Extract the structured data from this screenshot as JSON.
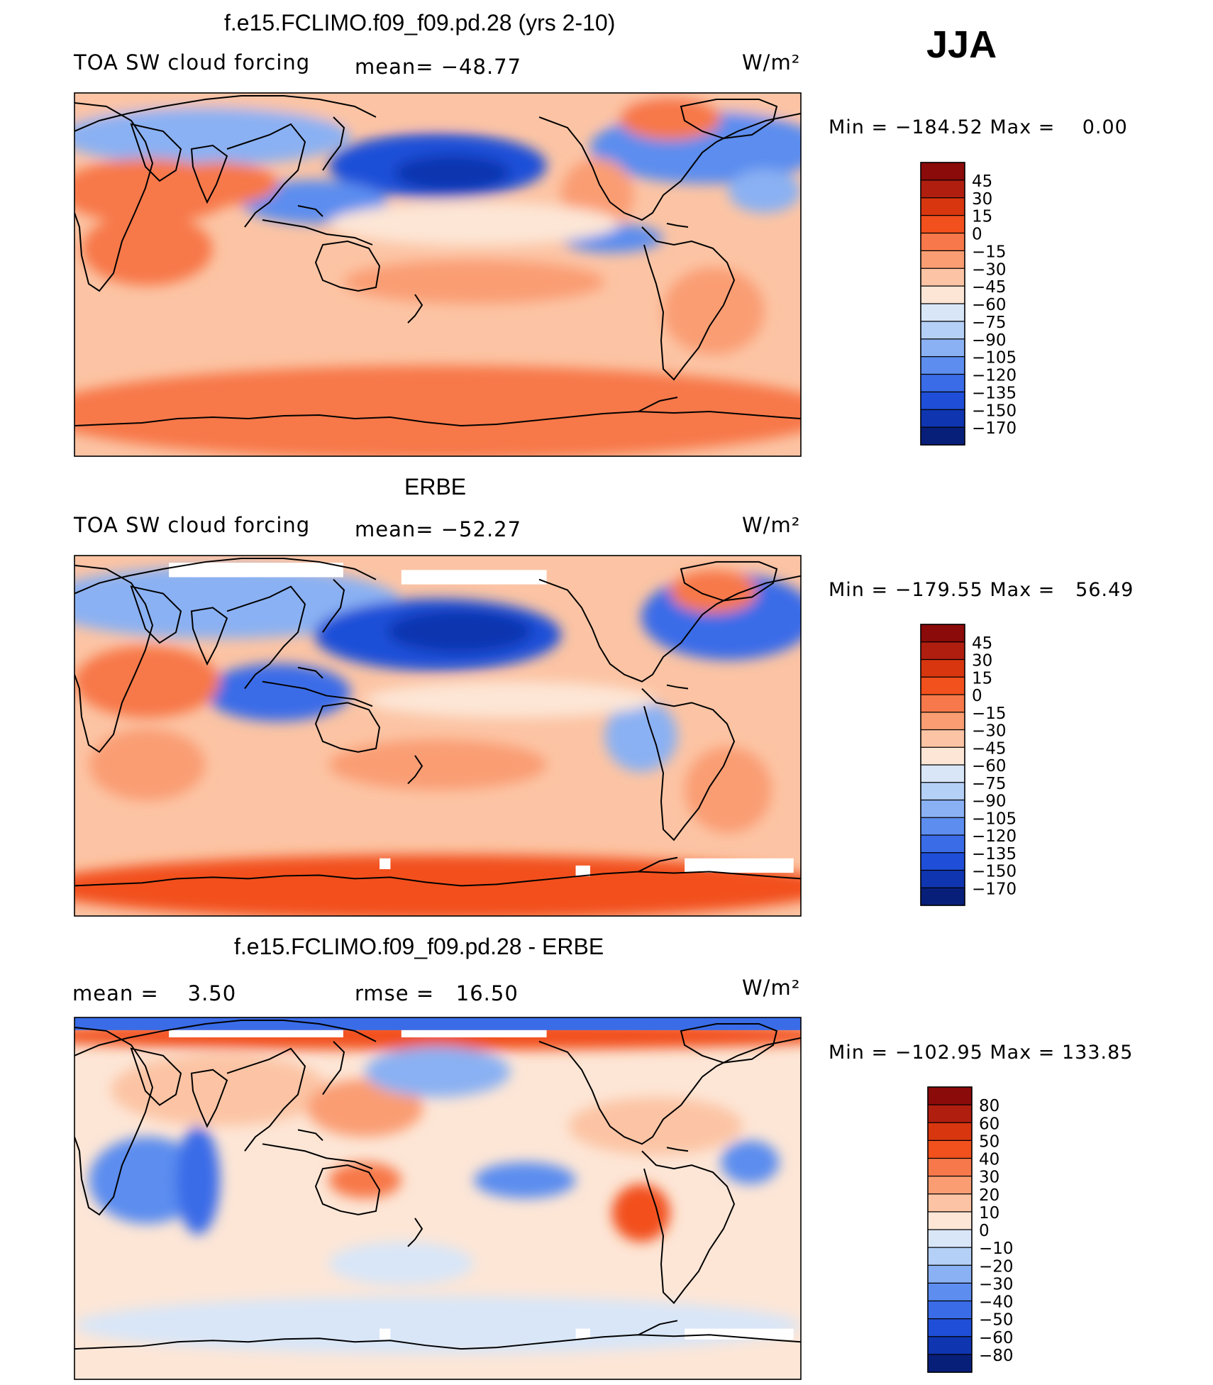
{
  "season": "JJA",
  "colors": {
    "abs_palette": [
      "#8b0a0a",
      "#b01e10",
      "#d8360f",
      "#f2501c",
      "#f7784a",
      "#fa9d73",
      "#fcc4a4",
      "#fde6d6",
      "#d8e6f8",
      "#b5d0f7",
      "#8ab1f3",
      "#5c8def",
      "#3a6ce8",
      "#1f4fd8",
      "#0f35b0",
      "#081f7a"
    ],
    "diff_palette": [
      "#8b0a0a",
      "#b01e10",
      "#d8360f",
      "#f2501c",
      "#f7784a",
      "#fa9d73",
      "#fcc4a4",
      "#fde6d6",
      "#d8e6f8",
      "#b5d0f7",
      "#8ab1f3",
      "#5c8def",
      "#3a6ce8",
      "#1f4fd8",
      "#0f35b0",
      "#081f7a"
    ]
  },
  "panels": [
    {
      "title": "f.e15.FCLIMO.f09_f09.pd.28 (yrs 2-10)",
      "left_label": "TOA SW cloud forcing",
      "center_label": "mean= −48.77",
      "units": "W/m²",
      "minmax": "Min = −184.52 Max =    0.00",
      "colorbar_labels": [
        "45",
        "30",
        "15",
        "0",
        "−15",
        "−30",
        "−45",
        "−60",
        "−75",
        "−90",
        "−105",
        "−120",
        "−135",
        "−150",
        "−170"
      ]
    },
    {
      "title": "ERBE",
      "left_label": "TOA SW cloud forcing",
      "center_label": "mean= −52.27",
      "units": "W/m²",
      "minmax": "Min = −179.55 Max =   56.49",
      "colorbar_labels": [
        "45",
        "30",
        "15",
        "0",
        "−15",
        "−30",
        "−45",
        "−60",
        "−75",
        "−90",
        "−105",
        "−120",
        "−135",
        "−150",
        "−170"
      ]
    },
    {
      "title": "f.e15.FCLIMO.f09_f09.pd.28 - ERBE",
      "left_label": "mean =    3.50",
      "center_label": "rmse =   16.50",
      "units": "W/m²",
      "minmax": "Min = −102.95 Max = 133.85",
      "colorbar_labels": [
        "80",
        "60",
        "50",
        "40",
        "30",
        "20",
        "10",
        "0",
        "−10",
        "−20",
        "−30",
        "−40",
        "−50",
        "−60",
        "−80"
      ]
    }
  ],
  "chart_data": [
    {
      "type": "heatmap",
      "title": "f.e15.FCLIMO.f09_f09.pd.28 (yrs 2-10)",
      "variable": "TOA SW cloud forcing",
      "units": "W/m²",
      "mean": -48.77,
      "min": -184.52,
      "max": 0.0,
      "levels": [
        45,
        30,
        15,
        0,
        -15,
        -30,
        -45,
        -60,
        -75,
        -90,
        -105,
        -120,
        -135,
        -150,
        -170
      ]
    },
    {
      "type": "heatmap",
      "title": "ERBE",
      "variable": "TOA SW cloud forcing",
      "units": "W/m²",
      "mean": -52.27,
      "min": -179.55,
      "max": 56.49,
      "levels": [
        45,
        30,
        15,
        0,
        -15,
        -30,
        -45,
        -60,
        -75,
        -90,
        -105,
        -120,
        -135,
        -150,
        -170
      ]
    },
    {
      "type": "heatmap",
      "title": "f.e15.FCLIMO.f09_f09.pd.28 - ERBE",
      "units": "W/m²",
      "mean": 3.5,
      "rmse": 16.5,
      "min": -102.95,
      "max": 133.85,
      "levels": [
        80,
        60,
        50,
        40,
        30,
        20,
        10,
        0,
        -10,
        -20,
        -30,
        -40,
        -50,
        -60,
        -80
      ]
    }
  ]
}
